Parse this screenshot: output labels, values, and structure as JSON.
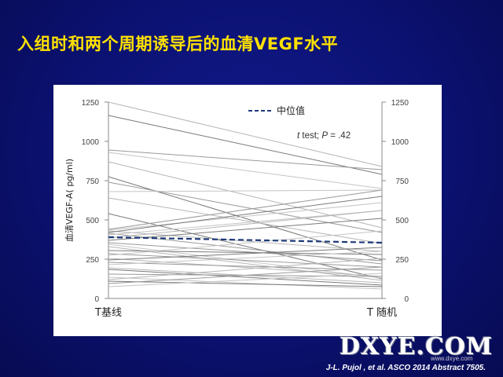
{
  "slide_title": "入组时和两个周期诱导后的血清VEGF水平",
  "citation": "J-L. Pujol , et al. ASCO 2014 Abstract 7505.",
  "watermark": {
    "text": "DXYE.COM",
    "sub": "www.dxye.com"
  },
  "chart_data": {
    "type": "line",
    "title": "",
    "ylabel": "血清VEGF-A( pg/ml)",
    "xlabel": "",
    "x": [
      "T基线",
      "T 随机"
    ],
    "ylim": [
      0,
      1250
    ],
    "yticks": [
      0,
      250,
      500,
      750,
      1000,
      1250
    ],
    "y_right_axis": true,
    "legend": {
      "label": "中位值",
      "position": "top-center",
      "style": "dashed"
    },
    "annotation": {
      "prefix": "t",
      "text": " test; ",
      "p_label": "P",
      "p_value": " = .42",
      "position": "top-right"
    },
    "median": {
      "values": [
        390,
        355
      ],
      "color": "#1f3a7a"
    },
    "patients": [
      [
        1250,
        840
      ],
      [
        1165,
        790
      ],
      [
        945,
        820
      ],
      [
        930,
        700
      ],
      [
        870,
        450
      ],
      [
        775,
        245
      ],
      [
        740,
        420
      ],
      [
        680,
        690
      ],
      [
        640,
        350
      ],
      [
        540,
        125
      ],
      [
        440,
        690
      ],
      [
        435,
        610
      ],
      [
        430,
        300
      ],
      [
        420,
        650
      ],
      [
        415,
        220
      ],
      [
        405,
        560
      ],
      [
        385,
        560
      ],
      [
        370,
        510
      ],
      [
        355,
        240
      ],
      [
        345,
        130
      ],
      [
        330,
        115
      ],
      [
        305,
        280
      ],
      [
        285,
        200
      ],
      [
        275,
        430
      ],
      [
        255,
        140
      ],
      [
        245,
        325
      ],
      [
        230,
        180
      ],
      [
        215,
        300
      ],
      [
        195,
        100
      ],
      [
        185,
        85
      ],
      [
        155,
        140
      ],
      [
        135,
        60
      ],
      [
        120,
        255
      ],
      [
        110,
        75
      ],
      [
        95,
        200
      ],
      [
        75,
        160
      ]
    ],
    "patient_colors": [
      "#b5b5b5",
      "#7a7a7a",
      "#9a9a9a",
      "#c4c4c4"
    ]
  }
}
